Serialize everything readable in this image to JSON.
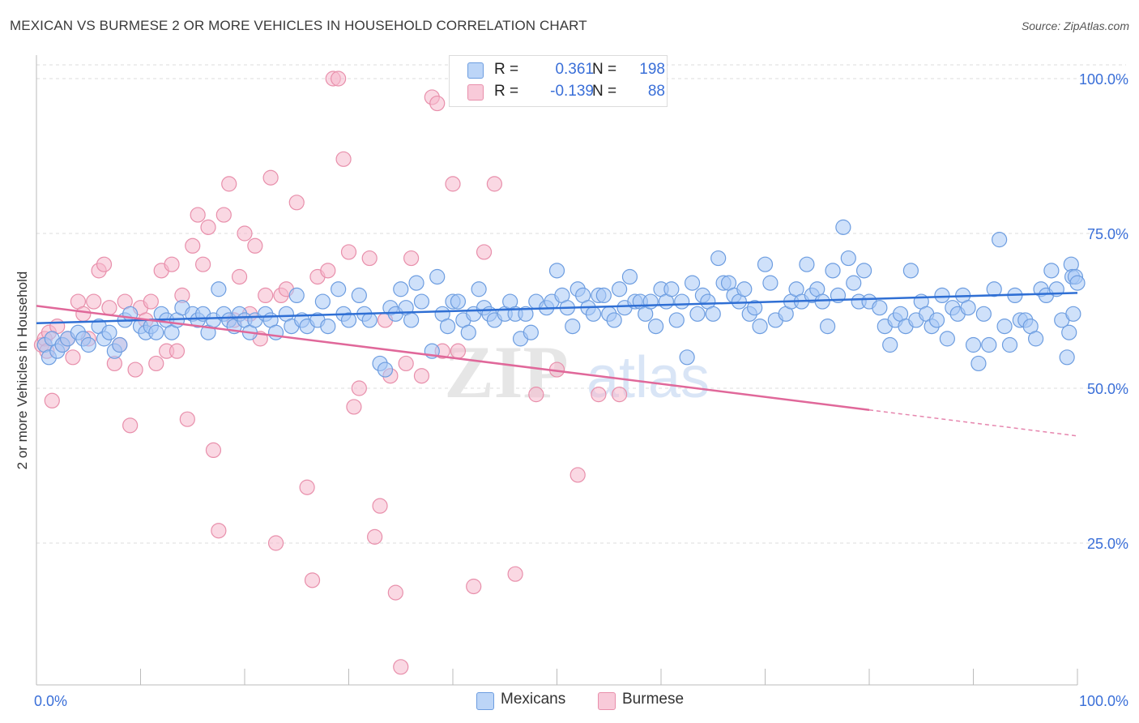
{
  "header": {
    "title": "MEXICAN VS BURMESE 2 OR MORE VEHICLES IN HOUSEHOLD CORRELATION CHART",
    "source": "Source: ZipAtlas.com"
  },
  "watermark": {
    "part1": "ZIP",
    "part2": "atlas"
  },
  "legend": {
    "rows": [
      {
        "r_label": "R =",
        "r_value": "0.361",
        "n_label": "N =",
        "n_value": "198",
        "color": "#a8c8f5"
      },
      {
        "r_label": "R =",
        "r_value": "-0.139",
        "n_label": "N =",
        "n_value": "88",
        "color": "#f5b8cc"
      }
    ]
  },
  "bottom_legend": [
    {
      "label": "Mexicans",
      "color": "#a8c8f5"
    },
    {
      "label": "Burmese",
      "color": "#f5b8cc"
    }
  ],
  "chart_data": {
    "type": "scatter",
    "title": "MEXICAN VS BURMESE 2 OR MORE VEHICLES IN HOUSEHOLD CORRELATION CHART",
    "xlabel": "",
    "ylabel": "2 or more Vehicles in Household",
    "xlim": [
      0,
      100
    ],
    "ylim": [
      0,
      105
    ],
    "x_tick_labels": [
      {
        "value": 0,
        "label": "0.0%"
      },
      {
        "value": 100,
        "label": "100.0%"
      }
    ],
    "y_tick_labels": [
      {
        "value": 25,
        "label": "25.0%"
      },
      {
        "value": 50,
        "label": "50.0%"
      },
      {
        "value": 75,
        "label": "75.0%"
      },
      {
        "value": 100,
        "label": "100.0%"
      }
    ],
    "grid": true,
    "colors": {
      "mexicans_fill": "#a8c8f5",
      "mexicans_stroke": "#6d9de0",
      "mexicans_line": "#2f6fd4",
      "burmese_fill": "#f5b8cc",
      "burmese_stroke": "#e88fab",
      "burmese_line": "#e0689a",
      "tick_label": "#3a6fd8",
      "axis_title": "#333333",
      "grid": "#dddddd",
      "axis": "#bbbbbb"
    },
    "series": [
      {
        "name": "Mexicans",
        "R": 0.361,
        "N": 198,
        "trend": {
          "x0": 0,
          "y0": 60.5,
          "x1": 100,
          "y1": 65.4
        },
        "points": [
          [
            0.8,
            57
          ],
          [
            1.2,
            55
          ],
          [
            1.5,
            58
          ],
          [
            2,
            56
          ],
          [
            2.5,
            57
          ],
          [
            3,
            58
          ],
          [
            4,
            59
          ],
          [
            4.5,
            58
          ],
          [
            5,
            57
          ],
          [
            6,
            60
          ],
          [
            6.5,
            58
          ],
          [
            7,
            59
          ],
          [
            7.5,
            56
          ],
          [
            8,
            57
          ],
          [
            8.5,
            61
          ],
          [
            9,
            62
          ],
          [
            10,
            60
          ],
          [
            10.5,
            59
          ],
          [
            11,
            60
          ],
          [
            11.5,
            59
          ],
          [
            12,
            62
          ],
          [
            12.5,
            61
          ],
          [
            13,
            59
          ],
          [
            13.5,
            61
          ],
          [
            14,
            63
          ],
          [
            15,
            62
          ],
          [
            15.5,
            61
          ],
          [
            16,
            62
          ],
          [
            16.5,
            59
          ],
          [
            17,
            61
          ],
          [
            17.5,
            66
          ],
          [
            18,
            62
          ],
          [
            18.5,
            61
          ],
          [
            19,
            60
          ],
          [
            19.5,
            62
          ],
          [
            20,
            61
          ],
          [
            20.5,
            59
          ],
          [
            21,
            61
          ],
          [
            22,
            62
          ],
          [
            22.5,
            61
          ],
          [
            23,
            59
          ],
          [
            24,
            62
          ],
          [
            24.5,
            60
          ],
          [
            25,
            65
          ],
          [
            25.5,
            61
          ],
          [
            26,
            60
          ],
          [
            27,
            61
          ],
          [
            27.5,
            64
          ],
          [
            28,
            60
          ],
          [
            29,
            66
          ],
          [
            29.5,
            62
          ],
          [
            30,
            61
          ],
          [
            31,
            65
          ],
          [
            31.5,
            62
          ],
          [
            32,
            61
          ],
          [
            33,
            54
          ],
          [
            33.5,
            53
          ],
          [
            34,
            63
          ],
          [
            34.5,
            62
          ],
          [
            35,
            66
          ],
          [
            35.5,
            63
          ],
          [
            36,
            61
          ],
          [
            36.5,
            67
          ],
          [
            37,
            64
          ],
          [
            38,
            56
          ],
          [
            38.5,
            68
          ],
          [
            39,
            62
          ],
          [
            39.5,
            60
          ],
          [
            40,
            64
          ],
          [
            40.5,
            64
          ],
          [
            41,
            61
          ],
          [
            41.5,
            59
          ],
          [
            42,
            62
          ],
          [
            42.5,
            66
          ],
          [
            43,
            63
          ],
          [
            43.5,
            62
          ],
          [
            44,
            61
          ],
          [
            45,
            62
          ],
          [
            45.5,
            64
          ],
          [
            46,
            62
          ],
          [
            46.5,
            58
          ],
          [
            47,
            62
          ],
          [
            47.5,
            59
          ],
          [
            48,
            64
          ],
          [
            49,
            63
          ],
          [
            49.5,
            64
          ],
          [
            50,
            69
          ],
          [
            50.5,
            65
          ],
          [
            51,
            63
          ],
          [
            51.5,
            60
          ],
          [
            52,
            66
          ],
          [
            52.5,
            65
          ],
          [
            53,
            63
          ],
          [
            53.5,
            62
          ],
          [
            54,
            65
          ],
          [
            54.5,
            65
          ],
          [
            55,
            62
          ],
          [
            55.5,
            61
          ],
          [
            56,
            66
          ],
          [
            56.5,
            63
          ],
          [
            57,
            68
          ],
          [
            57.5,
            64
          ],
          [
            58,
            64
          ],
          [
            58.5,
            62
          ],
          [
            59,
            64
          ],
          [
            59.5,
            60
          ],
          [
            60,
            66
          ],
          [
            60.5,
            64
          ],
          [
            61,
            66
          ],
          [
            61.5,
            61
          ],
          [
            62,
            64
          ],
          [
            62.5,
            55
          ],
          [
            63,
            67
          ],
          [
            63.5,
            62
          ],
          [
            64,
            65
          ],
          [
            64.5,
            64
          ],
          [
            65,
            62
          ],
          [
            65.5,
            71
          ],
          [
            66,
            67
          ],
          [
            66.5,
            67
          ],
          [
            67,
            65
          ],
          [
            67.5,
            64
          ],
          [
            68,
            66
          ],
          [
            68.5,
            62
          ],
          [
            69,
            63
          ],
          [
            69.5,
            60
          ],
          [
            70,
            70
          ],
          [
            70.5,
            67
          ],
          [
            71,
            61
          ],
          [
            72,
            62
          ],
          [
            72.5,
            64
          ],
          [
            73,
            66
          ],
          [
            73.5,
            64
          ],
          [
            74,
            70
          ],
          [
            74.5,
            65
          ],
          [
            75,
            66
          ],
          [
            75.5,
            64
          ],
          [
            76,
            60
          ],
          [
            76.5,
            69
          ],
          [
            77,
            65
          ],
          [
            77.5,
            76
          ],
          [
            78,
            71
          ],
          [
            78.5,
            67
          ],
          [
            79,
            64
          ],
          [
            79.5,
            69
          ],
          [
            80,
            64
          ],
          [
            81,
            63
          ],
          [
            81.5,
            60
          ],
          [
            82,
            57
          ],
          [
            82.5,
            61
          ],
          [
            83,
            62
          ],
          [
            83.5,
            60
          ],
          [
            84,
            69
          ],
          [
            84.5,
            61
          ],
          [
            85,
            64
          ],
          [
            85.5,
            62
          ],
          [
            86,
            60
          ],
          [
            86.5,
            61
          ],
          [
            87,
            65
          ],
          [
            87.5,
            58
          ],
          [
            88,
            63
          ],
          [
            88.5,
            62
          ],
          [
            89,
            65
          ],
          [
            89.5,
            63
          ],
          [
            90,
            57
          ],
          [
            90.5,
            54
          ],
          [
            91,
            62
          ],
          [
            91.5,
            57
          ],
          [
            92,
            66
          ],
          [
            92.5,
            74
          ],
          [
            93,
            60
          ],
          [
            93.5,
            57
          ],
          [
            94,
            65
          ],
          [
            94.5,
            61
          ],
          [
            95,
            61
          ],
          [
            95.5,
            60
          ],
          [
            96,
            58
          ],
          [
            96.5,
            66
          ],
          [
            97,
            65
          ],
          [
            97.5,
            69
          ],
          [
            98,
            66
          ],
          [
            98.5,
            61
          ],
          [
            99,
            55
          ],
          [
            99.2,
            59
          ],
          [
            99.4,
            70
          ],
          [
            99.5,
            68
          ],
          [
            99.6,
            62
          ],
          [
            99.8,
            68
          ],
          [
            100,
            67
          ]
        ]
      },
      {
        "name": "Burmese",
        "R": -0.139,
        "N": 88,
        "trend": {
          "x0": 0,
          "y0": 63.3,
          "x1": 80,
          "y1": 46.5,
          "dash_x1": 100,
          "dash_y1": 42.3
        },
        "points": [
          [
            0.5,
            57
          ],
          [
            0.8,
            58
          ],
          [
            1,
            56
          ],
          [
            1.2,
            59
          ],
          [
            1.5,
            48
          ],
          [
            2,
            60
          ],
          [
            2.5,
            57
          ],
          [
            3,
            58
          ],
          [
            3.5,
            55
          ],
          [
            4,
            64
          ],
          [
            4.5,
            62
          ],
          [
            5,
            58
          ],
          [
            5.5,
            64
          ],
          [
            6,
            69
          ],
          [
            6.5,
            70
          ],
          [
            7,
            63
          ],
          [
            7.5,
            54
          ],
          [
            8,
            57
          ],
          [
            8.5,
            64
          ],
          [
            9,
            44
          ],
          [
            9.5,
            53
          ],
          [
            10,
            63
          ],
          [
            10.5,
            61
          ],
          [
            11,
            64
          ],
          [
            11.5,
            54
          ],
          [
            12,
            69
          ],
          [
            12.5,
            56
          ],
          [
            13,
            70
          ],
          [
            13.5,
            56
          ],
          [
            14,
            65
          ],
          [
            14.5,
            45
          ],
          [
            15,
            73
          ],
          [
            15.5,
            78
          ],
          [
            16,
            70
          ],
          [
            16.5,
            76
          ],
          [
            17,
            40
          ],
          [
            17.5,
            27
          ],
          [
            18,
            78
          ],
          [
            18.5,
            83
          ],
          [
            19,
            61
          ],
          [
            19.5,
            68
          ],
          [
            20,
            75
          ],
          [
            20.5,
            62
          ],
          [
            21,
            73
          ],
          [
            21.5,
            58
          ],
          [
            22,
            65
          ],
          [
            22.5,
            84
          ],
          [
            23,
            25
          ],
          [
            23.5,
            65
          ],
          [
            24,
            66
          ],
          [
            25,
            80
          ],
          [
            26,
            34
          ],
          [
            26.5,
            19
          ],
          [
            27,
            68
          ],
          [
            28,
            69
          ],
          [
            28.5,
            100
          ],
          [
            29,
            100
          ],
          [
            29.5,
            87
          ],
          [
            30,
            72
          ],
          [
            30.5,
            47
          ],
          [
            31,
            50
          ],
          [
            32,
            71
          ],
          [
            32.5,
            26
          ],
          [
            33,
            31
          ],
          [
            33.5,
            61
          ],
          [
            34,
            52
          ],
          [
            34.5,
            17
          ],
          [
            35,
            5
          ],
          [
            35.5,
            54
          ],
          [
            36,
            71
          ],
          [
            37,
            52
          ],
          [
            38,
            97
          ],
          [
            38.5,
            96
          ],
          [
            39,
            56
          ],
          [
            40,
            83
          ],
          [
            40.5,
            56
          ],
          [
            42,
            18
          ],
          [
            43,
            72
          ],
          [
            44,
            83
          ],
          [
            46,
            20
          ],
          [
            48,
            49
          ],
          [
            50,
            53
          ],
          [
            52,
            36
          ],
          [
            54,
            49
          ],
          [
            56,
            49
          ]
        ]
      }
    ]
  }
}
